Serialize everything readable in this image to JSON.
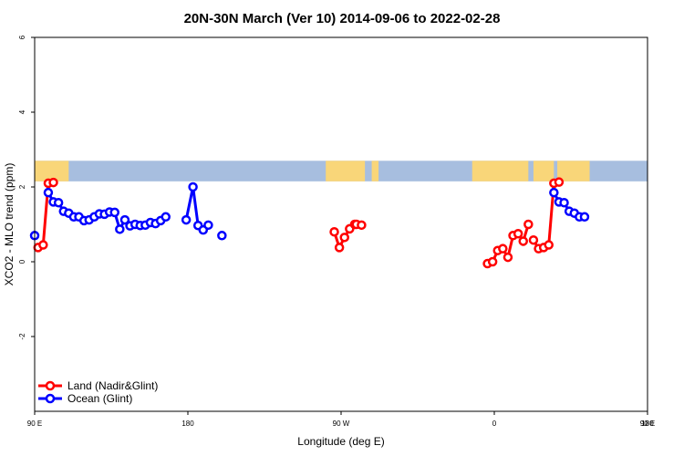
{
  "chart_data": {
    "type": "line",
    "title": "20N-30N March (Ver 10)   2014-09-06 to 2022-02-28",
    "xlabel": "Longitude (deg E)",
    "ylabel": "XCO2 - MLO trend (ppm)",
    "xlim": [
      90,
      450
    ],
    "ylim": [
      -4,
      6
    ],
    "x_ticks": [
      {
        "value": 90,
        "label": "90 E"
      },
      {
        "value": 180,
        "label": "180"
      },
      {
        "value": 270,
        "label": "90 W"
      },
      {
        "value": 360,
        "label": "0"
      },
      {
        "value": 450,
        "label": "90 E"
      },
      {
        "value": 540,
        "label": "180"
      }
    ],
    "y_ticks": [
      {
        "value": -2,
        "label": "-2"
      },
      {
        "value": 0,
        "label": "0"
      },
      {
        "value": 2,
        "label": "2"
      },
      {
        "value": 4,
        "label": "4"
      },
      {
        "value": 6,
        "label": "6"
      }
    ],
    "map_band": {
      "ymin": 2.15,
      "ymax": 2.7,
      "ocean_color": "#a7bedf",
      "land_color": "#f9d679"
    },
    "legend_position": "bottom-left",
    "series": [
      {
        "name": "Land (Nadir&Glint)",
        "color": "#ff0000",
        "segments": [
          [
            [
              92,
              0.38
            ],
            [
              95,
              0.45
            ],
            [
              98,
              2.1
            ],
            [
              101,
              2.12
            ]
          ],
          [
            [
              266,
              0.8
            ],
            [
              269,
              0.38
            ],
            [
              272,
              0.65
            ],
            [
              275,
              0.88
            ],
            [
              278,
              1.0
            ]
          ],
          [
            [
              279,
              1.0
            ],
            [
              282,
              0.98
            ]
          ],
          [
            [
              356,
              -0.05
            ],
            [
              359,
              0.0
            ],
            [
              362,
              0.3
            ],
            [
              365,
              0.35
            ],
            [
              368,
              0.12
            ],
            [
              371,
              0.7
            ],
            [
              374,
              0.75
            ],
            [
              377,
              0.55
            ],
            [
              380,
              1.0
            ]
          ],
          [
            [
              383,
              0.58
            ],
            [
              386,
              0.35
            ],
            [
              389,
              0.38
            ],
            [
              392,
              0.45
            ],
            [
              395,
              2.1
            ],
            [
              398,
              2.13
            ]
          ]
        ]
      },
      {
        "name": "Ocean (Glint)",
        "color": "#0000ff",
        "segments": [
          [
            [
              90,
              0.7
            ]
          ],
          [
            [
              98,
              1.85
            ],
            [
              101,
              1.6
            ],
            [
              104,
              1.58
            ],
            [
              107,
              1.35
            ],
            [
              110,
              1.3
            ],
            [
              113,
              1.2
            ],
            [
              116,
              1.2
            ],
            [
              119,
              1.1
            ],
            [
              122,
              1.12
            ],
            [
              125,
              1.2
            ],
            [
              128,
              1.28
            ],
            [
              131,
              1.27
            ],
            [
              134,
              1.33
            ],
            [
              137,
              1.32
            ],
            [
              140,
              0.87
            ],
            [
              143,
              1.12
            ],
            [
              146,
              0.96
            ],
            [
              149,
              1.0
            ],
            [
              152,
              0.97
            ],
            [
              155,
              0.98
            ],
            [
              158,
              1.05
            ],
            [
              161,
              1.02
            ],
            [
              164,
              1.1
            ],
            [
              167,
              1.2
            ]
          ],
          [
            [
              179,
              1.12
            ],
            [
              183,
              2.0
            ],
            [
              186,
              0.97
            ],
            [
              189,
              0.85
            ],
            [
              192,
              0.98
            ]
          ],
          [
            [
              200,
              0.7
            ]
          ],
          [
            [
              395,
              1.85
            ],
            [
              398,
              1.6
            ],
            [
              401,
              1.58
            ],
            [
              404,
              1.35
            ],
            [
              407,
              1.3
            ],
            [
              410,
              1.2
            ],
            [
              413,
              1.2
            ]
          ]
        ]
      }
    ]
  }
}
